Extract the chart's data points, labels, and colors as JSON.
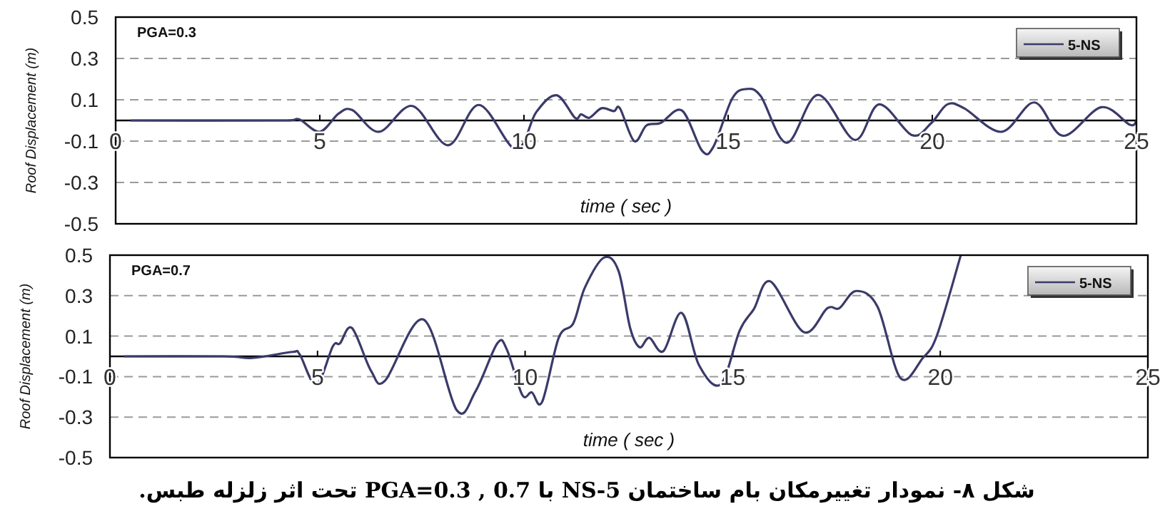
{
  "chart_data": [
    {
      "type": "line",
      "xlabel": "time ( sec )",
      "ylabel": "Roof Displacement (m)",
      "xlim": [
        0,
        25
      ],
      "ylim": [
        -0.5,
        0.5
      ],
      "xticks": [
        0,
        5,
        10,
        15,
        20,
        25
      ],
      "yticks": [
        -0.5,
        -0.3,
        -0.1,
        0.1,
        0.3,
        0.5
      ],
      "grid": "y",
      "legend": "top right",
      "annotations": [
        "PGA=0.3"
      ],
      "series": [
        {
          "name": "5-NS",
          "color": "#3a3a6a",
          "x": [
            0.37,
            4.2,
            4.5,
            5.0,
            5.46,
            5.8,
            6.45,
            7.27,
            8.14,
            8.9,
            9.8,
            10.3,
            10.8,
            11.25,
            11.4,
            11.6,
            11.9,
            12.2,
            12.35,
            12.7,
            13.0,
            13.35,
            13.87,
            14.36,
            14.64,
            15.1,
            15.45,
            15.8,
            16.44,
            17.2,
            18.1,
            18.7,
            19.5,
            19.97,
            20.37,
            20.78,
            21.7,
            22.5,
            23.2,
            24.14,
            24.84,
            25.0
          ],
          "values": [
            0,
            0,
            0.005,
            -0.055,
            0.033,
            0.05,
            -0.055,
            0.07,
            -0.12,
            0.075,
            -0.14,
            0.04,
            0.122,
            0.013,
            0.03,
            0.013,
            0.059,
            0.045,
            0.059,
            -0.1,
            -0.024,
            -0.012,
            0.048,
            -0.146,
            -0.127,
            0.106,
            0.152,
            0.117,
            -0.108,
            0.124,
            -0.094,
            0.078,
            -0.071,
            -0.014,
            0.078,
            0.059,
            -0.055,
            0.087,
            -0.074,
            0.064,
            -0.021,
            0.0
          ]
        }
      ]
    },
    {
      "type": "line",
      "xlabel": "time ( sec )",
      "ylabel": "Roof Displacement (m)",
      "xlim": [
        0,
        25
      ],
      "ylim": [
        -0.5,
        0.5
      ],
      "xticks": [
        0,
        5,
        10,
        15,
        20,
        25
      ],
      "yticks": [
        -0.5,
        -0.3,
        -0.1,
        0.1,
        0.3,
        0.5
      ],
      "grid": "y",
      "legend": "top right",
      "annotations": [
        "PGA=0.7",
        "شکل ۸- نمودار تغییرمکان بام ساختمان 5-NS  با PGA=0.3 , 0.7 تحت اثر زلزله طبس."
      ],
      "series": [
        {
          "name": "5-NS",
          "color": "#3a3a6a",
          "x": [
            0.33,
            2.74,
            3.43,
            4.4,
            4.57,
            4.97,
            5.37,
            5.54,
            5.83,
            6.29,
            6.63,
            7.55,
            8.35,
            8.81,
            9.33,
            9.56,
            9.93,
            10.16,
            10.41,
            10.81,
            11.16,
            11.44,
            11.9,
            12.25,
            12.53,
            12.76,
            12.99,
            13.33,
            13.77,
            14.19,
            14.71,
            15.17,
            15.51,
            15.91,
            16.71,
            17.28,
            17.57,
            17.97,
            18.49,
            19.04,
            19.58,
            19.92,
            20.49
          ],
          "values": [
            0,
            0,
            -0.008,
            0.022,
            0.01,
            -0.14,
            0.05,
            0.064,
            0.14,
            -0.072,
            -0.119,
            0.182,
            -0.265,
            -0.171,
            0.064,
            0.034,
            -0.19,
            -0.178,
            -0.225,
            0.092,
            0.163,
            0.34,
            0.488,
            0.422,
            0.14,
            0.045,
            0.092,
            0.026,
            0.215,
            -0.044,
            -0.138,
            0.128,
            0.234,
            0.37,
            0.12,
            0.238,
            0.238,
            0.323,
            0.245,
            -0.107,
            -0.008,
            0.104,
            0.497
          ]
        }
      ]
    }
  ]
}
